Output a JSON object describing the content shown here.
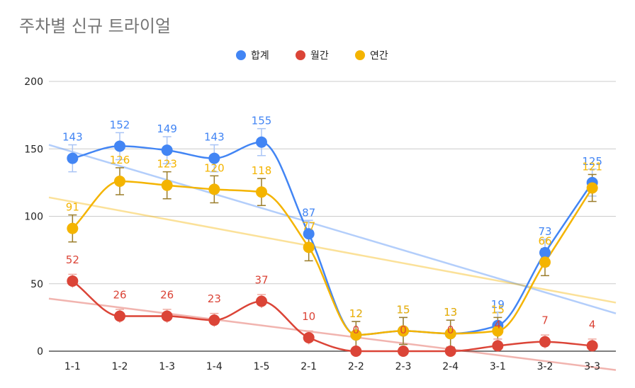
{
  "chart_data": {
    "type": "line",
    "title": "주차별 신규 트라이얼",
    "xlabel": "",
    "ylabel": "",
    "categories": [
      "1-1",
      "1-2",
      "1-3",
      "1-4",
      "1-5",
      "2-1",
      "2-2",
      "2-3",
      "2-4",
      "3-1",
      "3-2",
      "3-3"
    ],
    "ylim": [
      0,
      200
    ],
    "yticks": [
      0,
      50,
      100,
      150,
      200
    ],
    "grid": true,
    "legend_position": "top",
    "series": [
      {
        "name": "합계",
        "color": "#4285F4",
        "values": [
          143,
          152,
          149,
          143,
          155,
          87,
          12,
          15,
          13,
          19,
          73,
          125
        ],
        "trendline": [
          153,
          28
        ],
        "error_bars": true
      },
      {
        "name": "월간",
        "color": "#DB4437",
        "values": [
          52,
          26,
          26,
          23,
          37,
          10,
          0,
          0,
          0,
          4,
          7,
          4
        ],
        "trendline": [
          39,
          -14
        ],
        "error_bars": false
      },
      {
        "name": "연간",
        "color": "#F4B400",
        "values": [
          91,
          126,
          123,
          120,
          118,
          77,
          12,
          15,
          13,
          15,
          66,
          121
        ],
        "trendline": [
          114,
          36
        ],
        "error_bars": true
      }
    ],
    "label_draw_order": [
      "합계",
      "연간",
      "월간"
    ],
    "point_draw_order": [
      "월간",
      "합계",
      "연간"
    ]
  }
}
